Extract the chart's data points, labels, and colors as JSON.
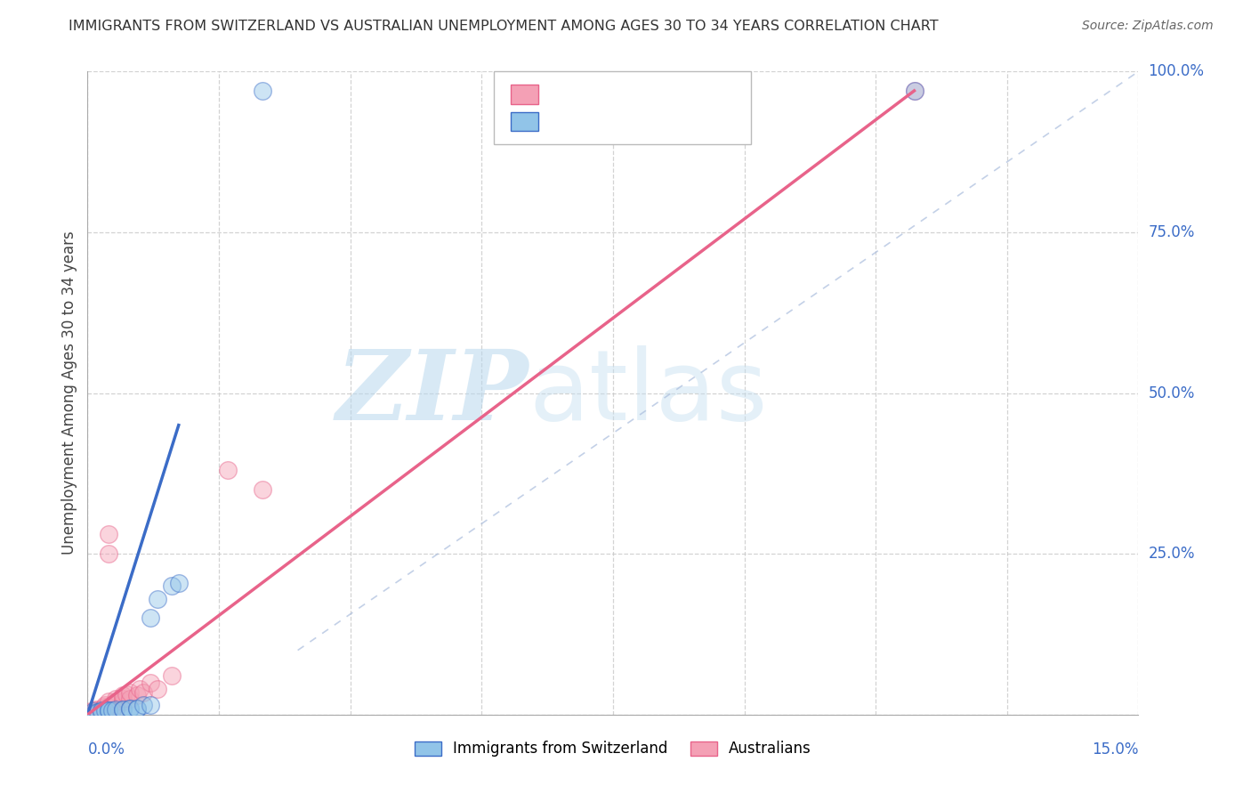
{
  "title": "IMMIGRANTS FROM SWITZERLAND VS AUSTRALIAN UNEMPLOYMENT AMONG AGES 30 TO 34 YEARS CORRELATION CHART",
  "source": "Source: ZipAtlas.com",
  "ylabel_label": "Unemployment Among Ages 30 to 34 years",
  "legend_label_blue": "Immigrants from Switzerland",
  "legend_label_pink": "Australians",
  "xmin": 0.0,
  "xmax": 0.15,
  "ymin": 0.0,
  "ymax": 1.0,
  "watermark_zip": "ZIP",
  "watermark_atlas": "atlas",
  "blue_color": "#91c4e8",
  "pink_color": "#f4a0b5",
  "trend_blue_color": "#3b6cc7",
  "trend_pink_color": "#e8638a",
  "title_color": "#333333",
  "axis_label_color": "#3b6cc7",
  "source_color": "#666666",
  "blue_scatter": [
    [
      0.0008,
      0.005
    ],
    [
      0.001,
      0.003
    ],
    [
      0.0015,
      0.004
    ],
    [
      0.002,
      0.006
    ],
    [
      0.002,
      0.005
    ],
    [
      0.0025,
      0.007
    ],
    [
      0.003,
      0.007
    ],
    [
      0.003,
      0.007
    ],
    [
      0.0035,
      0.007
    ],
    [
      0.004,
      0.008
    ],
    [
      0.005,
      0.008
    ],
    [
      0.005,
      0.008
    ],
    [
      0.006,
      0.009
    ],
    [
      0.006,
      0.009
    ],
    [
      0.007,
      0.01
    ],
    [
      0.007,
      0.01
    ],
    [
      0.008,
      0.015
    ],
    [
      0.009,
      0.015
    ],
    [
      0.009,
      0.15
    ],
    [
      0.01,
      0.18
    ],
    [
      0.012,
      0.2
    ],
    [
      0.013,
      0.205
    ],
    [
      0.025,
      0.97
    ],
    [
      0.118,
      0.97
    ]
  ],
  "pink_scatter": [
    [
      0.0005,
      0.005
    ],
    [
      0.001,
      0.003
    ],
    [
      0.001,
      0.006
    ],
    [
      0.0012,
      0.008
    ],
    [
      0.002,
      0.004
    ],
    [
      0.002,
      0.005
    ],
    [
      0.002,
      0.006
    ],
    [
      0.002,
      0.008
    ],
    [
      0.0022,
      0.01
    ],
    [
      0.0023,
      0.012
    ],
    [
      0.0025,
      0.015
    ],
    [
      0.003,
      0.005
    ],
    [
      0.003,
      0.007
    ],
    [
      0.003,
      0.01
    ],
    [
      0.003,
      0.012
    ],
    [
      0.003,
      0.02
    ],
    [
      0.003,
      0.25
    ],
    [
      0.003,
      0.28
    ],
    [
      0.004,
      0.01
    ],
    [
      0.004,
      0.015
    ],
    [
      0.004,
      0.02
    ],
    [
      0.004,
      0.025
    ],
    [
      0.005,
      0.02
    ],
    [
      0.005,
      0.025
    ],
    [
      0.005,
      0.03
    ],
    [
      0.0055,
      0.032
    ],
    [
      0.006,
      0.025
    ],
    [
      0.006,
      0.035
    ],
    [
      0.007,
      0.03
    ],
    [
      0.0075,
      0.04
    ],
    [
      0.008,
      0.035
    ],
    [
      0.009,
      0.05
    ],
    [
      0.01,
      0.04
    ],
    [
      0.012,
      0.06
    ],
    [
      0.02,
      0.38
    ],
    [
      0.025,
      0.35
    ],
    [
      0.118,
      0.97
    ]
  ],
  "blue_line_x": [
    0.0,
    0.013
  ],
  "blue_line_y": [
    0.0,
    0.45
  ],
  "pink_line_x": [
    0.0,
    0.118
  ],
  "pink_line_y": [
    0.0,
    0.97
  ],
  "diag_line_x": [
    0.03,
    0.15
  ],
  "diag_line_y": [
    0.1,
    1.0
  ],
  "grid_color": "#c8c8c8",
  "background_color": "#ffffff",
  "scatter_size": 200,
  "scatter_alpha": 0.45,
  "scatter_linewidth": 1.0
}
